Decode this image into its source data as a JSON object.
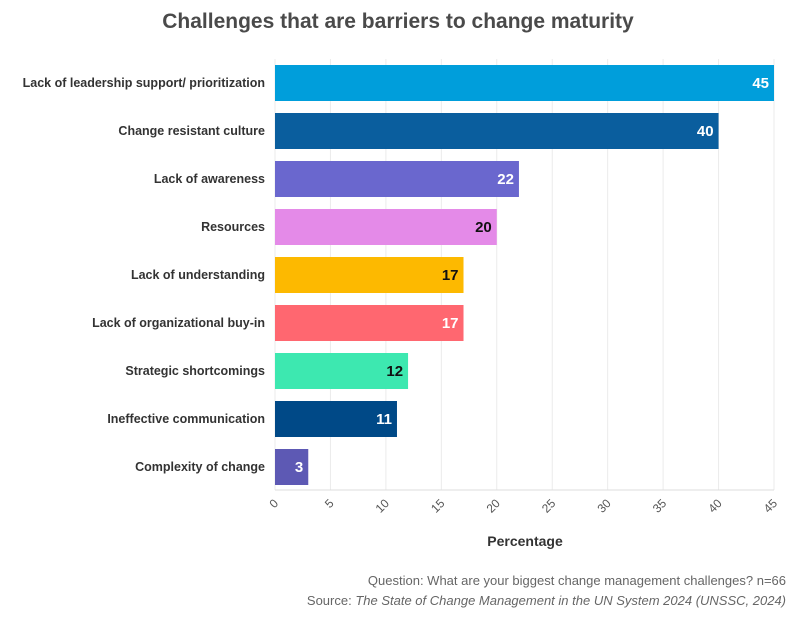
{
  "chart_data": {
    "type": "bar",
    "orientation": "horizontal",
    "title": "Challenges that are barriers to change maturity",
    "xlabel": "Percentage",
    "ylabel": "",
    "xlim": [
      0,
      45
    ],
    "xticks": [
      0,
      5,
      10,
      15,
      20,
      25,
      30,
      35,
      40,
      45
    ],
    "grid": true,
    "categories": [
      "Lack of leadership support/ prioritization",
      "Change resistant culture",
      "Lack of awareness",
      "Resources",
      "Lack of understanding",
      "Lack of organizational buy-in",
      "Strategic shortcomings",
      "Ineffective communication",
      "Complexity of change"
    ],
    "values": [
      45,
      40,
      22,
      20,
      17,
      17,
      12,
      11,
      3
    ],
    "colors": [
      "#009EDB",
      "#0A5E9E",
      "#6A67CE",
      "#E48AE8",
      "#FDB900",
      "#FF6770",
      "#3DE8B0",
      "#004987",
      "#5D59B4"
    ],
    "label_colors": [
      "#ffffff",
      "#ffffff",
      "#ffffff",
      "#111111",
      "#111111",
      "#ffffff",
      "#111111",
      "#ffffff",
      "#ffffff"
    ]
  },
  "footer": {
    "question": "Question: What are your biggest change management challenges? n=66",
    "source_prefix": "Source: ",
    "source_title": "The State of Change Management in the UN System 2024 (UNSSC, 2024)"
  }
}
